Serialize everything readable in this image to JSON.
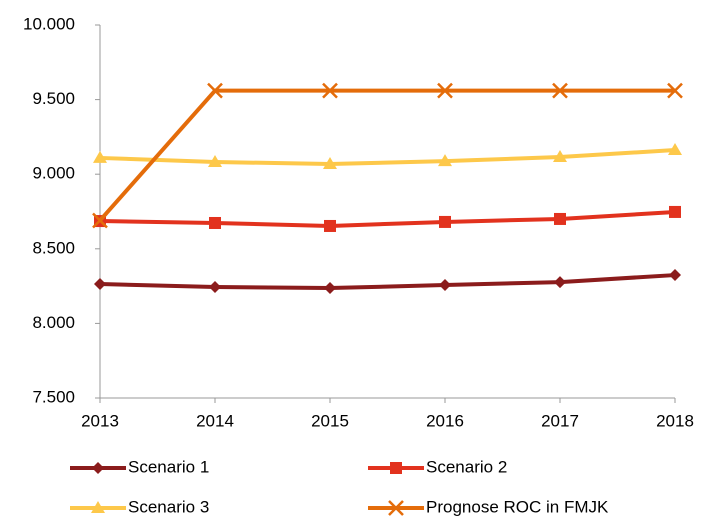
{
  "chart_data": {
    "type": "line",
    "categories": [
      "2013",
      "2014",
      "2015",
      "2016",
      "2017",
      "2018"
    ],
    "series": [
      {
        "name": "Scenario 1",
        "color": "#8b1c1c",
        "marker": "diamond",
        "values": [
          8264,
          8244,
          8237,
          8257,
          8277,
          8324
        ]
      },
      {
        "name": "Scenario 2",
        "color": "#e2321e",
        "marker": "square",
        "values": [
          8686,
          8673,
          8653,
          8680,
          8700,
          8747
        ]
      },
      {
        "name": "Scenario 3",
        "color": "#fdc84a",
        "marker": "triangle",
        "values": [
          9109,
          9082,
          9068,
          9088,
          9115,
          9162
        ]
      },
      {
        "name": "Prognose ROC in FMJK",
        "color": "#e46c0a",
        "marker": "x",
        "values": [
          8690,
          9560,
          9560,
          9560,
          9560,
          9560
        ]
      }
    ],
    "ylim": [
      7500,
      10000
    ],
    "yticks": [
      {
        "value": 7500,
        "label": "7.500"
      },
      {
        "value": 8000,
        "label": "8.000"
      },
      {
        "value": 8500,
        "label": "8.500"
      },
      {
        "value": 9000,
        "label": "9.000"
      },
      {
        "value": 9500,
        "label": "9.500"
      },
      {
        "value": 10000,
        "label": "10.000"
      }
    ],
    "grid": false
  }
}
